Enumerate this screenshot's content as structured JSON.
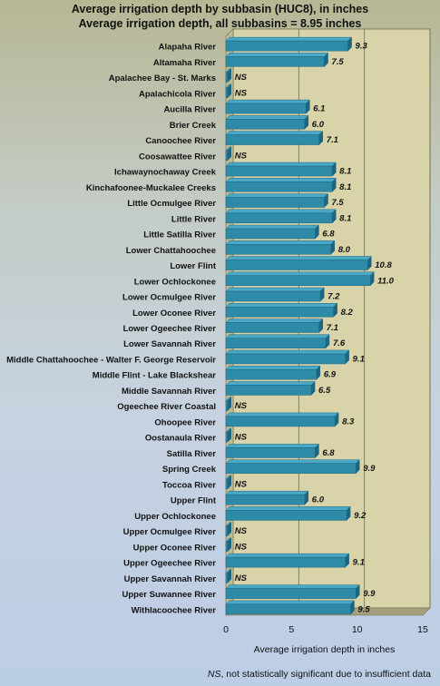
{
  "title_line1": "Average irrigation depth by subbasin (HUC8), in inches",
  "title_line2": "Average irrigation depth, all subbasins = 8.95 inches",
  "footnote_ns": "NS",
  "footnote_text": ", not statistically significant due to insufficient data",
  "colors": {
    "bar": "#2e8ba8",
    "bar_top": "#4aa9c6",
    "bar_dark": "#1e6580",
    "plot_bg": "#d8d3a8",
    "floor": "#a3a07a"
  },
  "chart_data": {
    "type": "bar",
    "orientation": "horizontal",
    "xlabel": "Average irrigation depth in inches",
    "xlim": [
      0,
      15
    ],
    "xticks": [
      0,
      5,
      10,
      15
    ],
    "grid": true,
    "categories": [
      "Alapaha River",
      "Altamaha River",
      "Apalachee Bay - St. Marks",
      "Apalachicola River",
      "Aucilla River",
      "Brier Creek",
      "Canoochee River",
      "Coosawattee River",
      "Ichawaynochaway Creek",
      "Kinchafoonee-Muckalee Creeks",
      "Little Ocmulgee River",
      "Little River",
      "Little Satilla River",
      "Lower Chattahoochee",
      "Lower Flint",
      "Lower Ochlockonee",
      "Lower Ocmulgee River",
      "Lower Oconee River",
      "Lower Ogeechee River",
      "Lower Savannah River",
      "Middle Chattahoochee - Walter F. George Reservoir",
      "Middle Flint - Lake Blackshear",
      "Middle Savannah River",
      "Ogeechee River Coastal",
      "Ohoopee River",
      "Oostanaula River",
      "Satilla River",
      "Spring Creek",
      "Toccoa River",
      "Upper Flint",
      "Upper Ochlockonee",
      "Upper Ocmulgee River",
      "Upper Oconee River",
      "Upper Ogeechee River",
      "Upper Savannah River",
      "Upper Suwannee River",
      "Withlacoochee River"
    ],
    "values": [
      9.3,
      7.5,
      null,
      null,
      6.1,
      6.0,
      7.1,
      null,
      8.1,
      8.1,
      7.5,
      8.1,
      6.8,
      8.0,
      10.8,
      11.0,
      7.2,
      8.2,
      7.1,
      7.6,
      9.1,
      6.9,
      6.5,
      null,
      8.3,
      null,
      6.8,
      9.9,
      null,
      6.0,
      9.2,
      null,
      null,
      9.1,
      null,
      9.9,
      9.5
    ],
    "labels": [
      "9.3",
      "7.5",
      "NS",
      "NS",
      "6.1",
      "6.0",
      "7.1",
      "NS",
      "8.1",
      "8.1",
      "7.5",
      "8.1",
      "6.8",
      "8.0",
      "10.8",
      "11.0",
      "7.2",
      "8.2",
      "7.1",
      "7.6",
      "9.1",
      "6.9",
      "6.5",
      "NS",
      "8.3",
      "NS",
      "6.8",
      "9.9",
      "NS",
      "6.0",
      "9.2",
      "NS",
      "NS",
      "9.1",
      "NS",
      "9.9",
      "9.5"
    ]
  }
}
